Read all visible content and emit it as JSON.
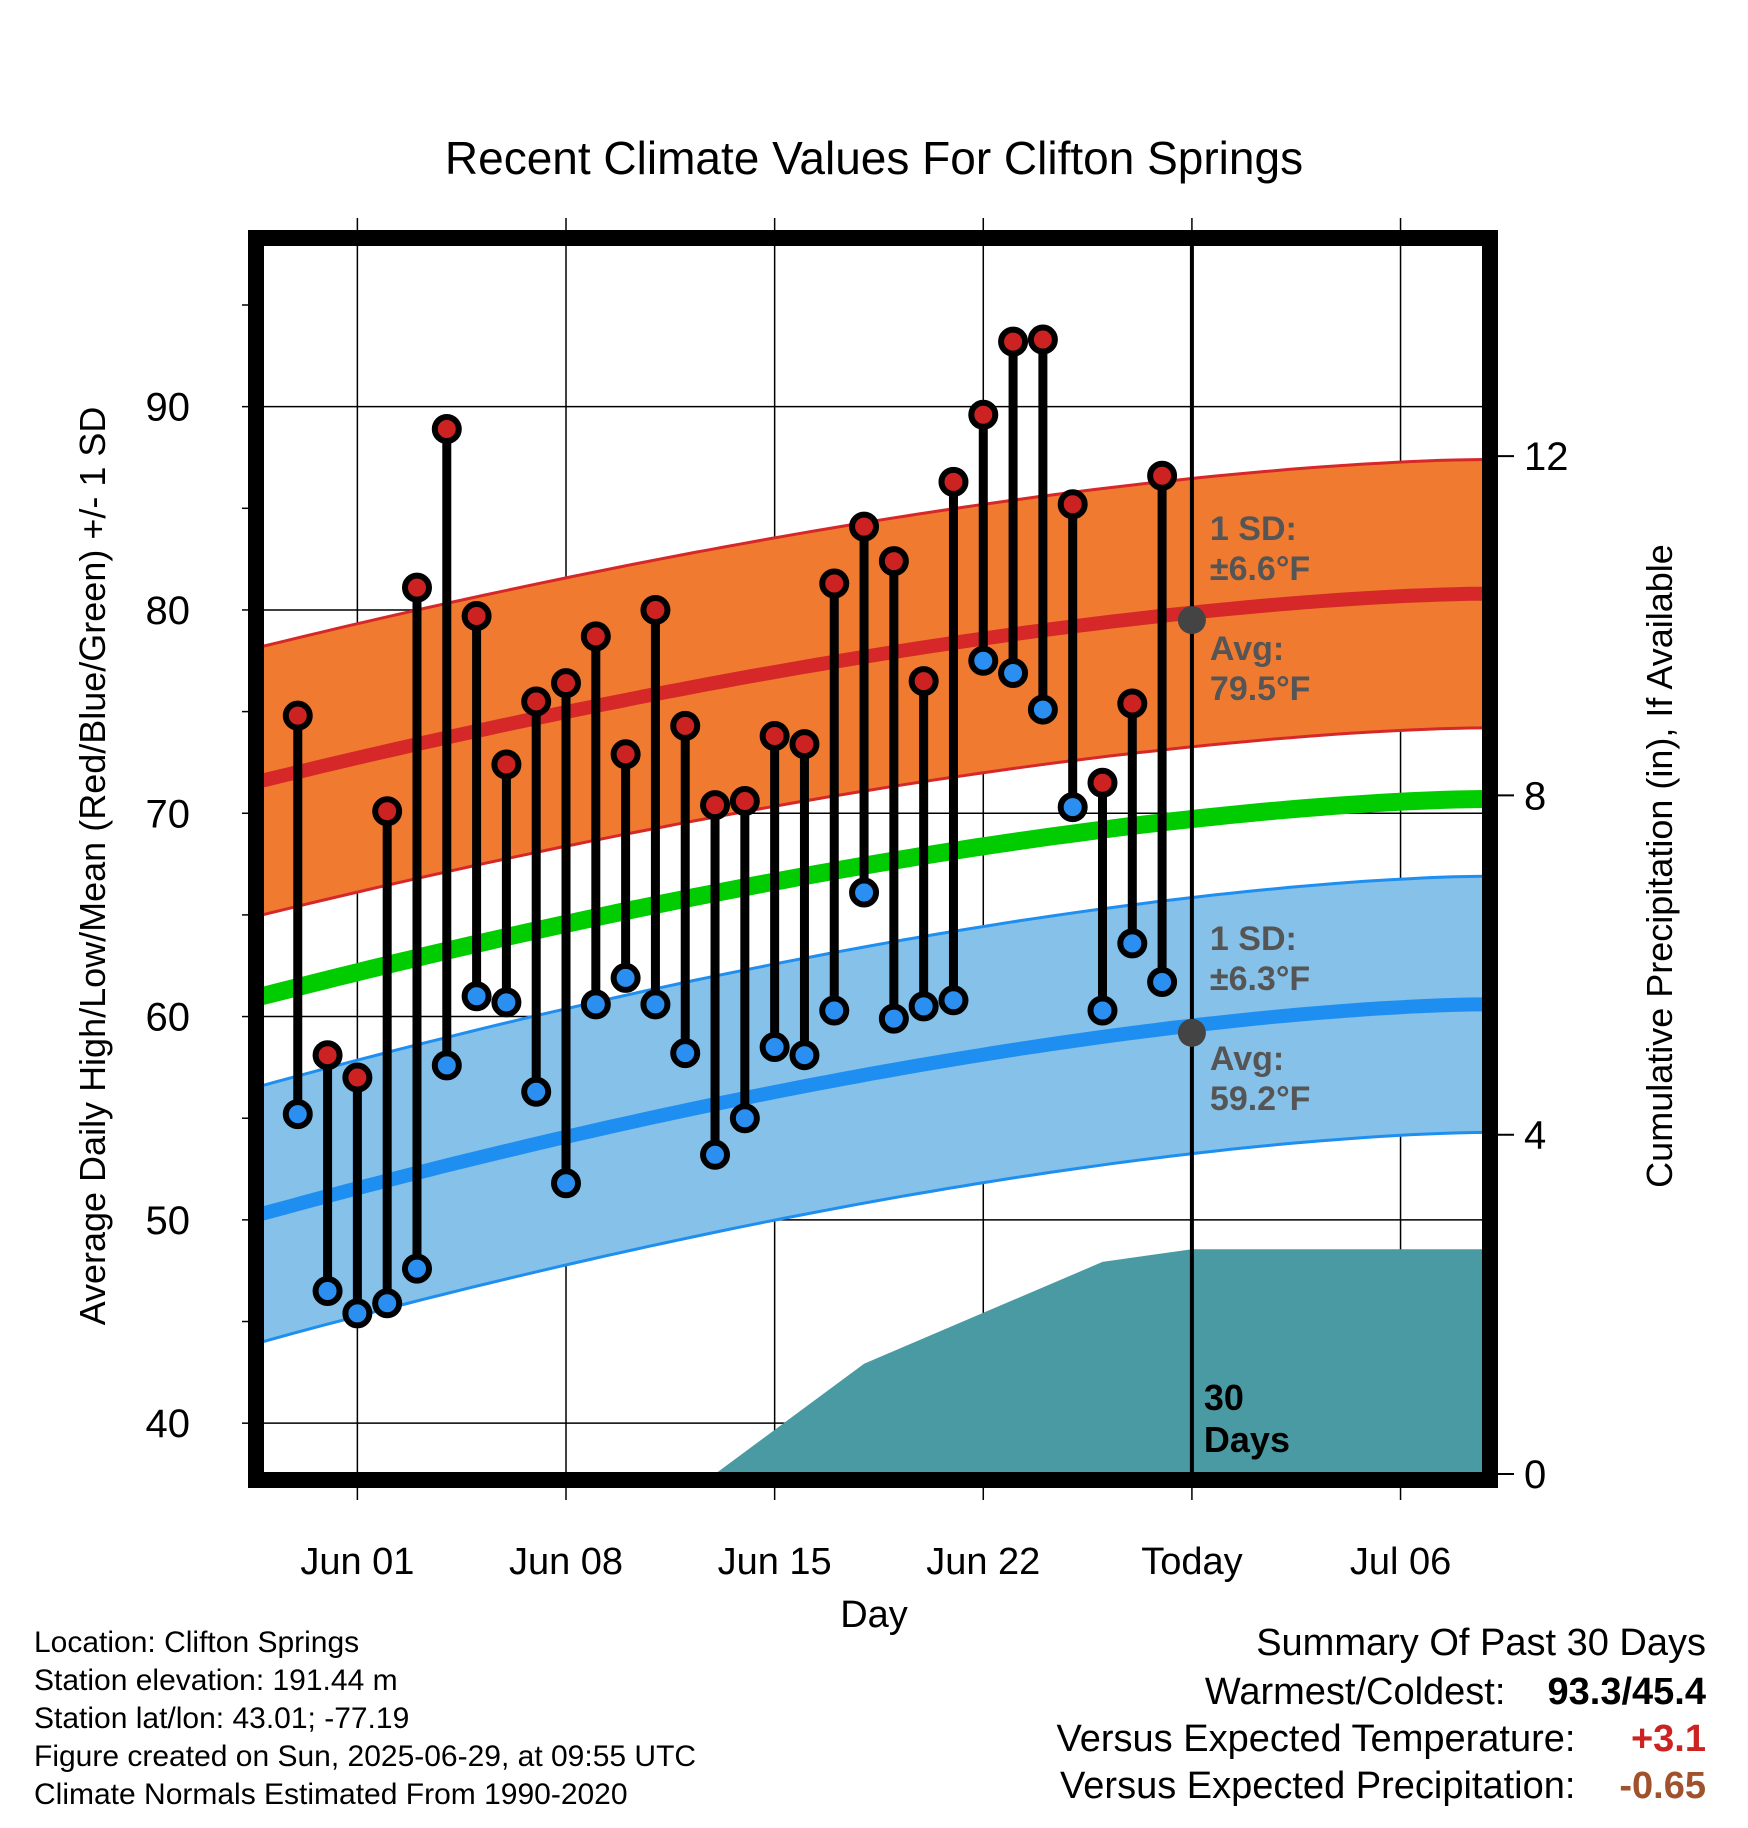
{
  "chart_data": {
    "type": "line",
    "title": "Recent Climate Values For Clifton Springs",
    "xlabel": "Day",
    "ylabel": "Average Daily High/Low/Mean (Red/Blue/Green) +/- 1 SD",
    "y2label": "Cumulative Precipitation (in), If Available",
    "ylim": [
      37.5,
      98
    ],
    "y2lim": [
      0,
      14.5
    ],
    "yticks": [
      40,
      50,
      60,
      70,
      80,
      90
    ],
    "y2ticks": [
      0,
      4,
      8,
      12
    ],
    "xticks": [
      {
        "day": 4,
        "label": "Jun 01"
      },
      {
        "day": 11,
        "label": "Jun 08"
      },
      {
        "day": 18,
        "label": "Jun 15"
      },
      {
        "day": 25,
        "label": "Jun 22"
      },
      {
        "day": 32,
        "label": "Today"
      },
      {
        "day": 39,
        "label": "Jul 06"
      }
    ],
    "x_range_days": [
      0.8,
      41.8
    ],
    "today_day": 32,
    "window_label": "30 Days",
    "daily_obs": {
      "x": [
        "May 30",
        "May 31",
        "Jun 01",
        "Jun 02",
        "Jun 03",
        "Jun 04",
        "Jun 05",
        "Jun 06",
        "Jun 07",
        "Jun 08",
        "Jun 09",
        "Jun 10",
        "Jun 11",
        "Jun 12",
        "Jun 13",
        "Jun 14",
        "Jun 15",
        "Jun 16",
        "Jun 17",
        "Jun 18",
        "Jun 19",
        "Jun 20",
        "Jun 21",
        "Jun 22",
        "Jun 23",
        "Jun 24",
        "Jun 25",
        "Jun 26",
        "Jun 27",
        "Jun 28"
      ],
      "high": [
        74.8,
        58.1,
        57.0,
        70.1,
        81.1,
        88.9,
        79.7,
        72.4,
        75.5,
        76.4,
        78.7,
        72.9,
        80.0,
        74.3,
        70.4,
        70.6,
        73.8,
        73.4,
        81.3,
        84.1,
        82.4,
        76.5,
        86.3,
        89.6,
        93.2,
        93.3,
        85.2,
        71.5,
        75.4,
        86.6
      ],
      "low": [
        55.2,
        46.5,
        45.4,
        45.9,
        47.6,
        57.6,
        61.0,
        60.7,
        56.3,
        51.8,
        60.6,
        61.9,
        60.6,
        58.2,
        53.2,
        55.0,
        58.5,
        58.1,
        60.3,
        66.1,
        59.9,
        60.5,
        60.8,
        77.5,
        76.9,
        75.1,
        70.3,
        60.3,
        63.6,
        61.7
      ]
    },
    "normals": {
      "start_day": 0.8,
      "end_day": 41.8,
      "avg_high": [
        71.6,
        80.8
      ],
      "avg_low": [
        50.3,
        60.6
      ],
      "mean": [
        61.0,
        70.7
      ],
      "today_avg_high": 79.5,
      "today_avg_low": 59.2,
      "sd_high": 6.6,
      "sd_low": 6.3
    },
    "precip_cumulative": {
      "day": [
        16,
        21,
        22,
        29,
        32
      ],
      "value": [
        0.0,
        1.3,
        1.45,
        2.5,
        2.65
      ]
    },
    "colors": {
      "high_band": "#f07b30",
      "high_band_edge": "#d62828",
      "high_avg": "#d62828",
      "low_band": "#85c1e9",
      "low_band_edge": "#1e8ff0",
      "low_avg": "#1e8ff0",
      "mean": "#00cc00",
      "precip": "#4a9aa3",
      "high_dot": "#cc2222",
      "low_dot": "#2a8ff0",
      "today_dot": "#444444",
      "annotation": "#555555"
    },
    "annotations": {
      "high_sd_line1": "1 SD:",
      "high_sd_line2": "±6.6°F",
      "high_avg_line1": "Avg:",
      "high_avg_line2": "79.5°F",
      "low_sd_line1": "1 SD:",
      "low_sd_line2": "±6.3°F",
      "low_avg_line1": "Avg:",
      "low_avg_line2": "59.2°F"
    }
  },
  "info": {
    "location": "Location: Clifton Springs",
    "elevation": "Station elevation: 191.44 m",
    "latlon": "Station lat/lon: 43.01; -77.19",
    "created": "Figure created on Sun, 2025-06-29, at 09:55 UTC",
    "normals_note": "Climate Normals Estimated From 1990-2020"
  },
  "summary": {
    "title": "Summary Of Past 30 Days",
    "warmest_label": "Warmest/Coldest:",
    "warmest_value": "93.3/45.4",
    "temp_label": "Versus Expected Temperature:",
    "temp_value": "+3.1",
    "temp_color": "#cc2222",
    "precip_label": "Versus Expected Precipitation:",
    "precip_value": "-0.65",
    "precip_color": "#a0522d"
  }
}
